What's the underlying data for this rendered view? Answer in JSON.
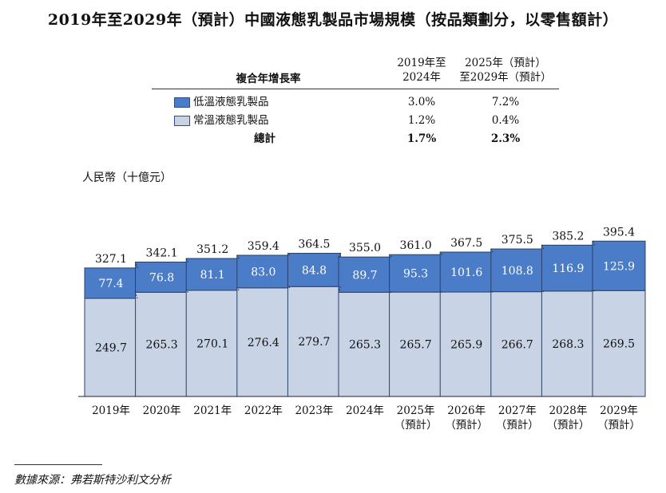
{
  "title": "2019年至2029年（預計）中國液態乳製品市場規模（按品類劃分，以零售額計）",
  "cagr_table": {
    "header_label": "複合年增長率",
    "col1_line1": "2019年至",
    "col1_line2": "2024年",
    "col2_line1": "2025年（預計）",
    "col2_line2": "至2029年（預計）",
    "rows": [
      {
        "label": "低溫液態乳製品",
        "v1": "3.0%",
        "v2": "7.2%"
      },
      {
        "label": "常溫液態乳製品",
        "v1": "1.2%",
        "v2": "0.4%"
      }
    ],
    "total": {
      "label": "總計",
      "v1": "1.7%",
      "v2": "2.3%"
    }
  },
  "colors": {
    "low_temp": "#4a7cc7",
    "ambient": "#c8d3e6",
    "edge": "#2a3f66"
  },
  "chart_data": {
    "type": "bar",
    "stacked": true,
    "unit_label": "人民幣（十億元）",
    "categories": [
      {
        "line1": "2019年",
        "line2": ""
      },
      {
        "line1": "2020年",
        "line2": ""
      },
      {
        "line1": "2021年",
        "line2": ""
      },
      {
        "line1": "2022年",
        "line2": ""
      },
      {
        "line1": "2023年",
        "line2": ""
      },
      {
        "line1": "2024年",
        "line2": ""
      },
      {
        "line1": "2025年",
        "line2": "（預計）"
      },
      {
        "line1": "2026年",
        "line2": "（預計）"
      },
      {
        "line1": "2027年",
        "line2": "（預計）"
      },
      {
        "line1": "2028年",
        "line2": "（預計）"
      },
      {
        "line1": "2029年",
        "line2": "（預計）"
      }
    ],
    "series": [
      {
        "name": "常溫液態乳製品",
        "values": [
          249.7,
          265.3,
          270.1,
          276.4,
          279.7,
          265.3,
          265.7,
          265.9,
          266.7,
          268.3,
          269.5
        ]
      },
      {
        "name": "低溫液態乳製品",
        "values": [
          77.4,
          76.8,
          81.1,
          83.0,
          84.8,
          89.7,
          95.3,
          101.6,
          108.8,
          116.9,
          125.9
        ]
      }
    ],
    "totals": [
      327.1,
      342.1,
      351.2,
      359.4,
      364.5,
      355.0,
      361.0,
      367.5,
      375.5,
      385.2,
      395.4
    ]
  },
  "source": "數據來源：弗若斯特沙利文分析"
}
